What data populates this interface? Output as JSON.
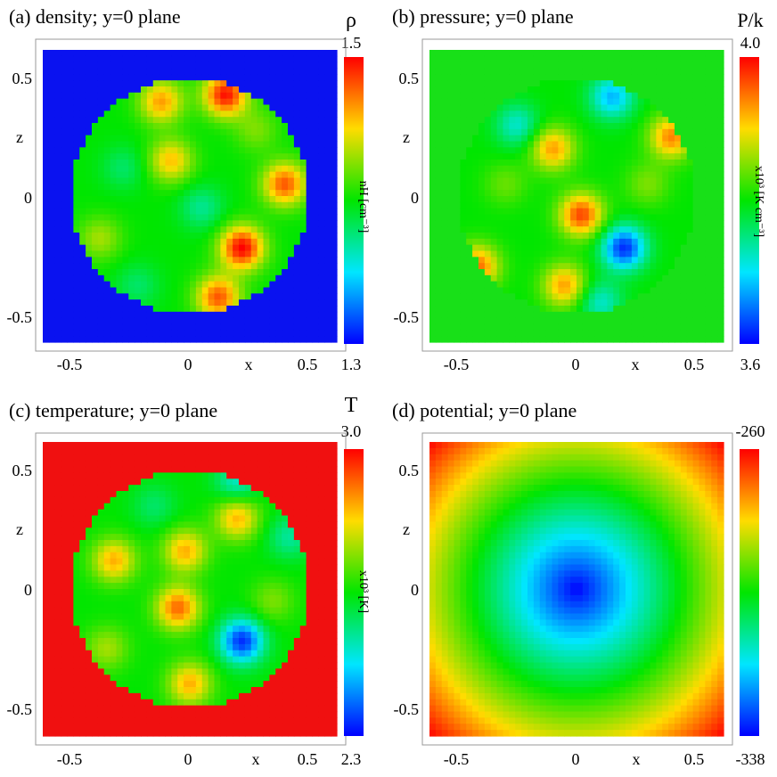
{
  "chart_data": [
    {
      "type": "heatmap",
      "title": "(a) density; y=0 plane",
      "xlabel": "x",
      "ylabel": "z",
      "x_ticks": [
        "-0.5",
        "0",
        "0.5"
      ],
      "z_ticks": [
        "0.5",
        "0",
        "-0.5"
      ],
      "xlim": [
        -0.62,
        0.62
      ],
      "zlim": [
        -0.62,
        0.62
      ],
      "colorbar": {
        "symbol": "ρ",
        "max": "1.5",
        "min": "1.3",
        "unit": "nH [cm⁻³]"
      },
      "background": "#0a12f0",
      "cloud_radius": 0.5,
      "blobs": [
        {
          "x": -0.12,
          "z": 0.4,
          "level": 0.82
        },
        {
          "x": 0.15,
          "z": 0.43,
          "level": 0.98
        },
        {
          "x": -0.08,
          "z": 0.15,
          "level": 0.78
        },
        {
          "x": 0.4,
          "z": 0.05,
          "level": 0.9
        },
        {
          "x": 0.22,
          "z": -0.22,
          "level": 1.0
        },
        {
          "x": 0.12,
          "z": -0.43,
          "level": 0.9
        },
        {
          "x": -0.38,
          "z": -0.18,
          "level": 0.66
        },
        {
          "x": 0.05,
          "z": -0.05,
          "level": 0.36
        },
        {
          "x": -0.28,
          "z": 0.12,
          "level": 0.4
        },
        {
          "x": 0.28,
          "z": 0.28,
          "level": 0.62
        },
        {
          "x": -0.22,
          "z": -0.38,
          "level": 0.4
        }
      ]
    },
    {
      "type": "heatmap",
      "title": "(b) pressure; y=0 plane",
      "xlabel": "x",
      "ylabel": "z",
      "x_ticks": [
        "-0.5",
        "0",
        "0.5"
      ],
      "z_ticks": [
        "0.5",
        "0",
        "-0.5"
      ],
      "xlim": [
        -0.62,
        0.62
      ],
      "zlim": [
        -0.62,
        0.62
      ],
      "colorbar": {
        "symbol": "P/k",
        "max": "4.0",
        "min": "3.6",
        "unit": "x10³ [K cm⁻³]"
      },
      "background": "#18e018",
      "cloud_radius": 0.5,
      "blobs": [
        {
          "x": -0.1,
          "z": 0.2,
          "level": 0.82
        },
        {
          "x": 0.02,
          "z": -0.08,
          "level": 0.92
        },
        {
          "x": 0.2,
          "z": -0.22,
          "level": 0.05
        },
        {
          "x": 0.4,
          "z": 0.25,
          "level": 0.85
        },
        {
          "x": 0.15,
          "z": 0.42,
          "level": 0.2
        },
        {
          "x": -0.42,
          "z": -0.3,
          "level": 0.88
        },
        {
          "x": -0.05,
          "z": -0.38,
          "level": 0.82
        },
        {
          "x": -0.25,
          "z": 0.3,
          "level": 0.3
        },
        {
          "x": 0.3,
          "z": 0.05,
          "level": 0.62
        },
        {
          "x": 0.1,
          "z": -0.45,
          "level": 0.3
        },
        {
          "x": -0.3,
          "z": 0.05,
          "level": 0.6
        }
      ]
    },
    {
      "type": "heatmap",
      "title": "(c) temperature; y=0 plane",
      "xlabel": "x",
      "ylabel": "z",
      "x_ticks": [
        "-0.5",
        "0",
        "0.5"
      ],
      "z_ticks": [
        "0.5",
        "0",
        "-0.5"
      ],
      "xlim": [
        -0.62,
        0.62
      ],
      "zlim": [
        -0.62,
        0.62
      ],
      "colorbar": {
        "symbol": "T",
        "max": "3.0",
        "min": "2.3",
        "unit": "x10³ [K]"
      },
      "background": "#f01010",
      "cloud_radius": 0.5,
      "blobs": [
        {
          "x": -0.05,
          "z": -0.08,
          "level": 0.88
        },
        {
          "x": 0.22,
          "z": -0.22,
          "level": 0.05
        },
        {
          "x": 0.2,
          "z": 0.3,
          "level": 0.8
        },
        {
          "x": -0.32,
          "z": 0.12,
          "level": 0.8
        },
        {
          "x": -0.02,
          "z": 0.16,
          "level": 0.8
        },
        {
          "x": 0.2,
          "z": 0.45,
          "level": 0.3
        },
        {
          "x": 0.42,
          "z": 0.22,
          "level": 0.35
        },
        {
          "x": 0.0,
          "z": -0.4,
          "level": 0.8
        },
        {
          "x": -0.35,
          "z": -0.25,
          "level": 0.66
        },
        {
          "x": 0.35,
          "z": -0.05,
          "level": 0.62
        },
        {
          "x": -0.15,
          "z": 0.35,
          "level": 0.4
        }
      ]
    },
    {
      "type": "heatmap",
      "title": "(d) potential; y=0 plane",
      "xlabel": "x",
      "ylabel": "z",
      "x_ticks": [
        "-0.5",
        "0",
        "0.5"
      ],
      "z_ticks": [
        "0.5",
        "0",
        "-0.5"
      ],
      "xlim": [
        -0.62,
        0.62
      ],
      "zlim": [
        -0.62,
        0.62
      ],
      "colorbar": {
        "symbol": "",
        "max": "-260",
        "min": "-338",
        "unit": ""
      },
      "field": "radial",
      "field_max_radius": 0.877
    }
  ]
}
